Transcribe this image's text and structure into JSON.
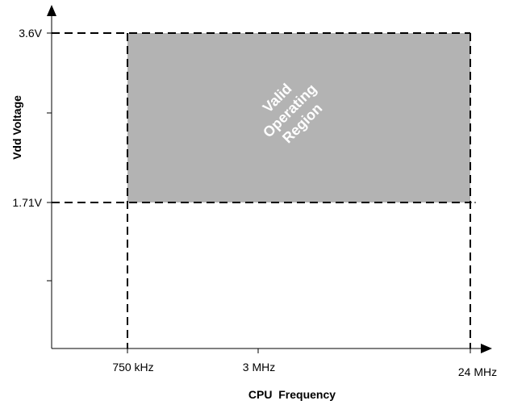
{
  "chart_data": {
    "type": "area",
    "title": "",
    "xlabel": "CPU  Frequency",
    "ylabel": "Vdd Voltage",
    "x_ticks": [
      "750 kHz",
      "3 MHz",
      "24 MHz"
    ],
    "y_ticks": [
      "3.6V",
      "1.71V"
    ],
    "region": {
      "label_lines": [
        "Valid",
        "Operating",
        "Region"
      ],
      "x_range": [
        "750 kHz",
        "24 MHz"
      ],
      "y_range": [
        1.71,
        3.6
      ],
      "unit_y": "V",
      "color": "#b3b3b3"
    },
    "grid": false,
    "legend": "none"
  }
}
